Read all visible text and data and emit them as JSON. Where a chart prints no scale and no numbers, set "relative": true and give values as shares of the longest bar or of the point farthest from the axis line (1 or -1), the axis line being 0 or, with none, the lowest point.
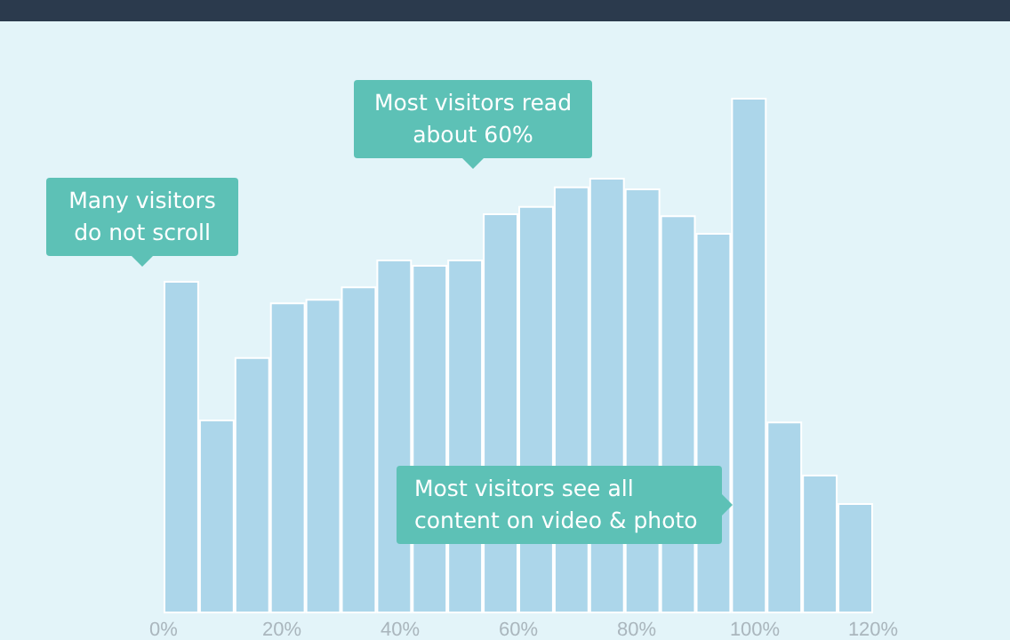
{
  "chart_data": {
    "type": "bar",
    "relative": true,
    "x": [
      3,
      9,
      15,
      21,
      27,
      33,
      39,
      45,
      51,
      57,
      63,
      69,
      75,
      81,
      87,
      93,
      99,
      105,
      111,
      117
    ],
    "values": [
      0.645,
      0.376,
      0.497,
      0.603,
      0.61,
      0.634,
      0.686,
      0.676,
      0.686,
      0.776,
      0.79,
      0.828,
      0.845,
      0.824,
      0.772,
      0.738,
      1,
      0.372,
      0.269,
      0.214
    ],
    "color": "#acd6ea",
    "xlim": [
      0,
      120
    ],
    "xticks": [
      {
        "value": 0,
        "label": "0%"
      },
      {
        "value": 20,
        "label": "20%"
      },
      {
        "value": 40,
        "label": "40%"
      },
      {
        "value": 60,
        "label": "60%"
      },
      {
        "value": 80,
        "label": "80%"
      },
      {
        "value": 100,
        "label": "100%"
      },
      {
        "value": 120,
        "label": "120%"
      }
    ],
    "annotations": [
      "Many visitors do not scroll",
      "Most visitors read about 60%",
      "Most visitors see all content on video & photo"
    ],
    "grid": false
  }
}
